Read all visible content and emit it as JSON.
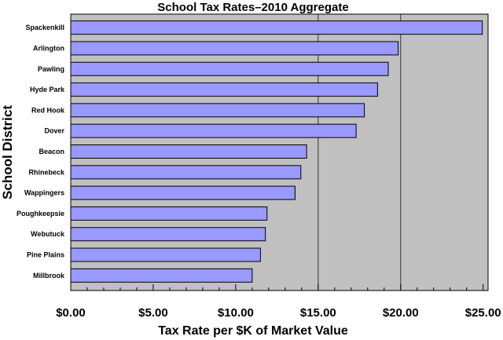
{
  "chart_data": {
    "type": "bar",
    "orientation": "horizontal",
    "title": "School Tax Rates–2010 Aggregate",
    "xlabel": "Tax Rate per $K of Market Value",
    "ylabel": "School District",
    "xlim": [
      0,
      25.3
    ],
    "x_ticks": [
      {
        "value": 0,
        "label": "$0.00"
      },
      {
        "value": 5,
        "label": "$5.00"
      },
      {
        "value": 10,
        "label": "$10.00"
      },
      {
        "value": 15,
        "label": "$15.00"
      },
      {
        "value": 20,
        "label": "$20.00"
      },
      {
        "value": 25,
        "label": "$25.00"
      }
    ],
    "gridlines_at": [
      15,
      20
    ],
    "categories": [
      "Spackenkill",
      "Arlington",
      "Pawling",
      "Hyde Park",
      "Red Hook",
      "Dover",
      "Beacon",
      "Rhinebeck",
      "Wappingers",
      "Poughkeepsie",
      "Webutuck",
      "Pine Plains",
      "Millbrook"
    ],
    "values": [
      24.95,
      19.85,
      19.25,
      18.6,
      17.8,
      17.3,
      14.3,
      13.95,
      13.6,
      11.9,
      11.8,
      11.5,
      11.0
    ],
    "colors": {
      "bar_fill": "#9999ff",
      "bar_stroke": "#000000",
      "background": "#c0c0c0",
      "gridline": "#333333"
    }
  }
}
